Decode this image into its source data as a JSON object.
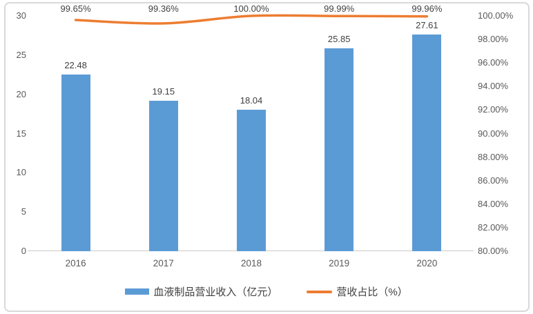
{
  "chart_data": {
    "type": "bar",
    "subtype": "bar-line-combo",
    "title": "",
    "categories": [
      "2016",
      "2017",
      "2018",
      "2019",
      "2020"
    ],
    "series": [
      {
        "name": "血液制品营业收入（亿元）",
        "type": "bar",
        "axis": "left",
        "values": [
          22.48,
          19.15,
          18.04,
          25.85,
          27.61
        ],
        "labels": [
          "22.48",
          "19.15",
          "18.04",
          "25.85",
          "27.61"
        ],
        "color": "#5B9BD5"
      },
      {
        "name": "营收占比（%）",
        "type": "line",
        "axis": "right",
        "values": [
          99.65,
          99.36,
          100.0,
          99.99,
          99.96
        ],
        "labels": [
          "99.65%",
          "99.36%",
          "100.00%",
          "99.99%",
          "99.96%"
        ],
        "color": "#ED7D31"
      }
    ],
    "left_axis": {
      "min": 0,
      "max": 30,
      "ticks": [
        "30",
        "25",
        "20",
        "15",
        "10",
        "5",
        "0"
      ]
    },
    "right_axis": {
      "min": 80,
      "max": 100,
      "ticks": [
        "100.00%",
        "98.00%",
        "96.00%",
        "94.00%",
        "92.00%",
        "90.00%",
        "88.00%",
        "86.00%",
        "84.00%",
        "82.00%",
        "80.00%"
      ]
    },
    "grid": "off",
    "legend_position": "bottom",
    "colors": {
      "bar": "#5B9BD5",
      "line": "#ED7D31",
      "axis_text": "#595959",
      "data_label_text": "#404040",
      "axis_line": "#c9c9c9",
      "frame_border": "#d8d8d8",
      "background": "#ffffff"
    }
  }
}
